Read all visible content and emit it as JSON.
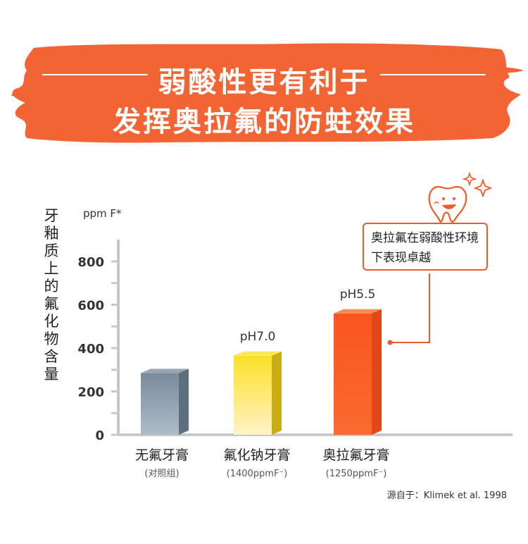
{
  "banner": {
    "line1": "弱酸性更有利于",
    "line2": "发挥奥拉氟的防蛀效果"
  },
  "callout": {
    "line1": "奥拉氟在弱酸性环境",
    "line2": "下表现卓越"
  },
  "source": "源自于：Klimek et al. 1998",
  "colors": {
    "banner": "#f26433",
    "accent": "#f05a28",
    "axis": "#c8c8c8"
  },
  "icons": [
    "tooth-mascot-icon",
    "sparkle-icon"
  ],
  "chart_data": {
    "type": "bar",
    "ylabel_chars": [
      "牙",
      "釉",
      "质",
      "上",
      "的",
      "氟",
      "化",
      "物",
      "含",
      "量"
    ],
    "unit": "ppm F*",
    "ylim": [
      0,
      900
    ],
    "yticks": [
      {
        "value": 0,
        "label": "0"
      },
      {
        "value": 200,
        "label": "200"
      },
      {
        "value": 400,
        "label": "400"
      },
      {
        "value": 600,
        "label": "600"
      },
      {
        "value": 800,
        "label": "800"
      }
    ],
    "categories": [
      {
        "name": "无氟牙膏",
        "sub": "(对照组)"
      },
      {
        "name": "氟化钠牙膏",
        "sub": "(1400ppmF⁻)"
      },
      {
        "name": "奥拉氟牙膏",
        "sub": "(1250ppmF⁻)"
      }
    ],
    "values": [
      285,
      365,
      560
    ],
    "data_labels": [
      "",
      "pH7.0",
      "pH5.5"
    ]
  }
}
